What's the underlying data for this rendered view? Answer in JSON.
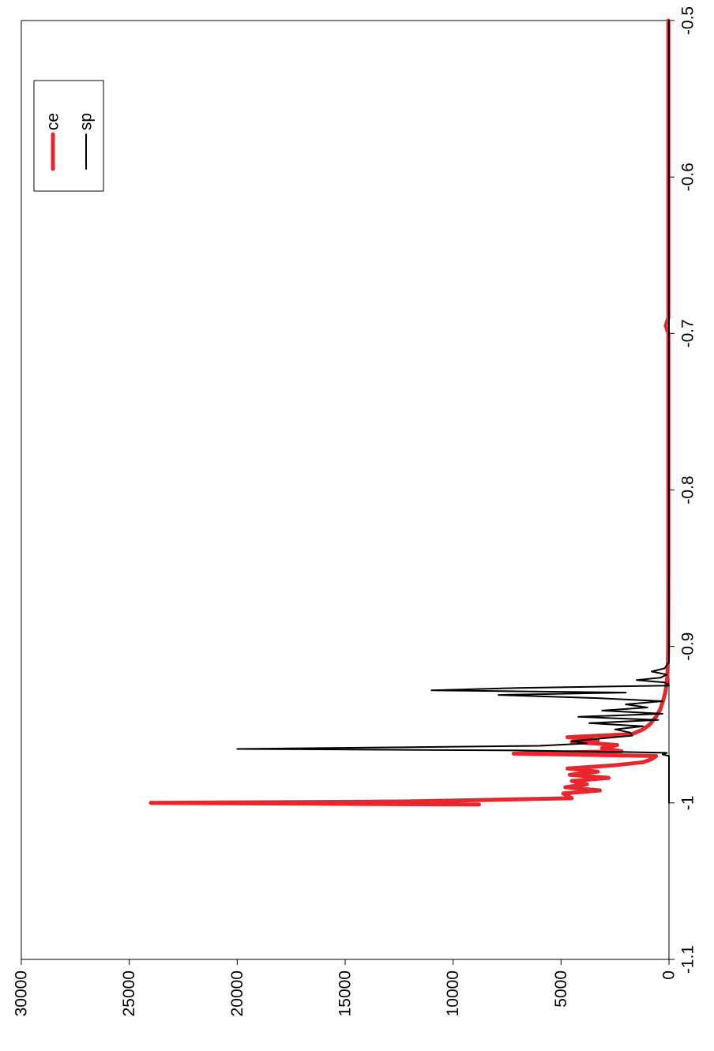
{
  "chart_data": {
    "type": "line",
    "title": "",
    "xlabel": "",
    "ylabel": "",
    "xlim": [
      -1.1,
      -0.5
    ],
    "ylim": [
      0,
      30000
    ],
    "x_ticks": [
      -1.1,
      -1,
      -0.9,
      -0.8,
      -0.7,
      -0.6,
      -0.5
    ],
    "y_ticks": [
      0,
      5000,
      10000,
      15000,
      20000,
      25000,
      30000
    ],
    "x_tick_labels": [
      "-1.1",
      "-1",
      "-0.9",
      "-0.8",
      "-0.7",
      "-0.6",
      "-0.5"
    ],
    "y_tick_labels": [
      "0",
      "5000",
      "10000",
      "15000",
      "20000",
      "25000",
      "30000"
    ],
    "grid": false,
    "orientation": "rotated 90 degrees clockwise",
    "legend": {
      "placement": "top-right",
      "entries": [
        "ce",
        "sp"
      ]
    },
    "series": [
      {
        "name": "ce",
        "color": "#e8262d",
        "line_width": "thick",
        "points": [
          [
            -1.001,
            8800
          ],
          [
            -1.0,
            24000
          ],
          [
            -0.999,
            12000
          ],
          [
            -0.997,
            4500
          ],
          [
            -0.994,
            4900
          ],
          [
            -0.992,
            3200
          ],
          [
            -0.99,
            4800
          ],
          [
            -0.988,
            3800
          ],
          [
            -0.986,
            4500
          ],
          [
            -0.984,
            2800
          ],
          [
            -0.982,
            4600
          ],
          [
            -0.98,
            3300
          ],
          [
            -0.978,
            4700
          ],
          [
            -0.976,
            2600
          ],
          [
            -0.974,
            1200
          ],
          [
            -0.972,
            800
          ],
          [
            -0.97,
            600
          ],
          [
            -0.9685,
            7200
          ],
          [
            -0.967,
            2200
          ],
          [
            -0.965,
            3100
          ],
          [
            -0.963,
            2400
          ],
          [
            -0.961,
            4500
          ],
          [
            -0.96,
            3300
          ],
          [
            -0.958,
            4700
          ],
          [
            -0.956,
            1700
          ],
          [
            -0.953,
            1200
          ],
          [
            -0.95,
            900
          ],
          [
            -0.945,
            600
          ],
          [
            -0.94,
            400
          ],
          [
            -0.935,
            280
          ],
          [
            -0.93,
            180
          ],
          [
            -0.925,
            120
          ],
          [
            -0.92,
            80
          ],
          [
            -0.91,
            50
          ],
          [
            -0.9,
            40
          ],
          [
            -0.85,
            30
          ],
          [
            -0.8,
            30
          ],
          [
            -0.75,
            30
          ],
          [
            -0.7,
            30
          ],
          [
            -0.695,
            150
          ],
          [
            -0.69,
            30
          ],
          [
            -0.65,
            30
          ],
          [
            -0.6,
            30
          ],
          [
            -0.55,
            30
          ],
          [
            -0.5,
            30
          ]
        ]
      },
      {
        "name": "sp",
        "color": "#000000",
        "line_width": "thin",
        "points": [
          [
            -1.0,
            0
          ],
          [
            -0.99,
            0
          ],
          [
            -0.98,
            0
          ],
          [
            -0.975,
            0
          ],
          [
            -0.97,
            0
          ],
          [
            -0.969,
            300
          ],
          [
            -0.968,
            100
          ],
          [
            -0.9675,
            2000
          ],
          [
            -0.9665,
            7000
          ],
          [
            -0.9655,
            20000
          ],
          [
            -0.9645,
            13000
          ],
          [
            -0.9635,
            6000
          ],
          [
            -0.962,
            3800
          ],
          [
            -0.9605,
            4500
          ],
          [
            -0.959,
            3300
          ],
          [
            -0.957,
            1700
          ],
          [
            -0.955,
            1800
          ],
          [
            -0.953,
            2500
          ],
          [
            -0.951,
            1200
          ],
          [
            -0.949,
            3700
          ],
          [
            -0.947,
            500
          ],
          [
            -0.945,
            4200
          ],
          [
            -0.943,
            300
          ],
          [
            -0.941,
            3100
          ],
          [
            -0.939,
            1000
          ],
          [
            -0.937,
            2000
          ],
          [
            -0.935,
            300
          ],
          [
            -0.933,
            3300
          ],
          [
            -0.931,
            7900
          ],
          [
            -0.9295,
            2000
          ],
          [
            -0.928,
            11000
          ],
          [
            -0.9265,
            7000
          ],
          [
            -0.925,
            0
          ],
          [
            -0.923,
            200
          ],
          [
            -0.9215,
            1500
          ],
          [
            -0.92,
            400
          ],
          [
            -0.918,
            100
          ],
          [
            -0.916,
            800
          ],
          [
            -0.914,
            200
          ],
          [
            -0.91,
            0
          ],
          [
            -0.9,
            0
          ],
          [
            -0.85,
            0
          ],
          [
            -0.8,
            0
          ],
          [
            -0.7,
            0
          ],
          [
            -0.6,
            0
          ],
          [
            -0.5,
            0
          ]
        ]
      }
    ]
  }
}
